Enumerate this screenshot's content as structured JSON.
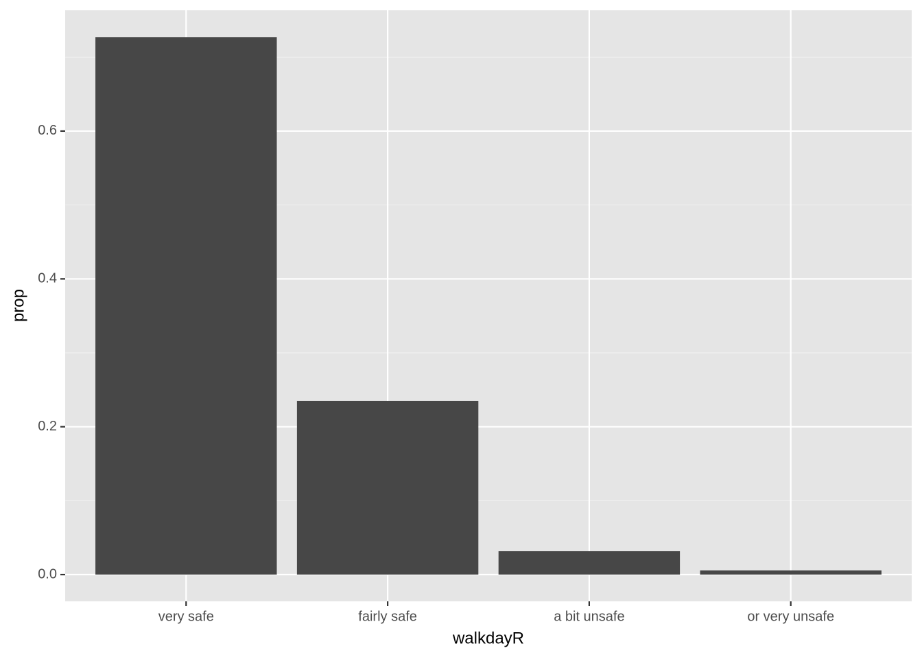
{
  "chart_data": {
    "type": "bar",
    "x_label": "walkdayR",
    "y_label": "prop",
    "categories": [
      "very safe",
      "fairly safe",
      "a bit unsafe",
      "or very unsafe"
    ],
    "values": [
      0.727,
      0.235,
      0.0316,
      0.0056
    ],
    "color": "#474747",
    "ylim": [
      -0.0362,
      0.7634
    ],
    "yticks": [
      {
        "value": 0,
        "label": "0.0"
      },
      0.2,
      0.4,
      0.6
    ],
    "minor_yticks": [
      0.1,
      0.3,
      0.5,
      0.7
    ],
    "grid": true
  }
}
